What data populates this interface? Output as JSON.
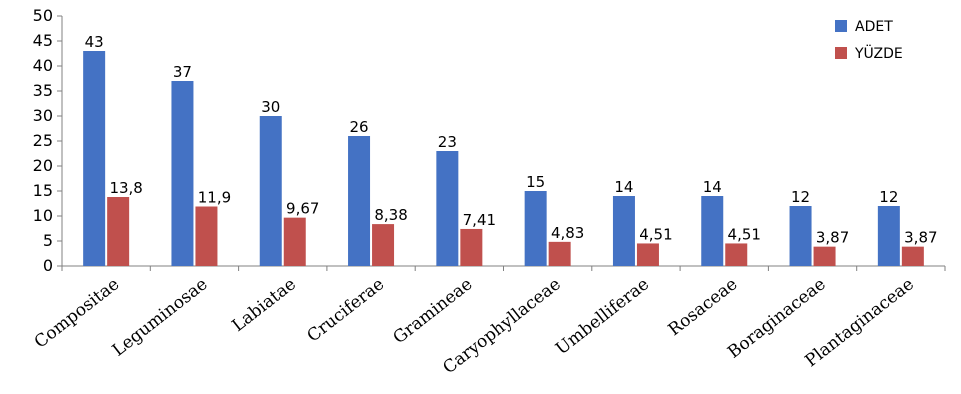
{
  "chart_data": {
    "type": "bar",
    "categories": [
      "Compositae",
      "Leguminosae",
      "Labiatae",
      "Cruciferae",
      "Gramineae",
      "Caryophyllaceae",
      "Umbelliferae",
      "Rosaceae",
      "Boraginaceae",
      "Plantaginaceae"
    ],
    "series": [
      {
        "name": "ADET",
        "color": "#4472C4",
        "values": [
          43,
          37,
          30,
          26,
          23,
          15,
          14,
          14,
          12,
          12
        ],
        "labels": [
          "43",
          "37",
          "30",
          "26",
          "23",
          "15",
          "14",
          "14",
          "12",
          "12"
        ]
      },
      {
        "name": "YÜZDE",
        "color": "#C0504D",
        "values": [
          13.8,
          11.9,
          9.67,
          8.38,
          7.41,
          4.83,
          4.51,
          4.51,
          3.87,
          3.87
        ],
        "labels": [
          "13,8",
          "11,9",
          "9,67",
          "8,38",
          "7,41",
          "4,83",
          "4,51",
          "4,51",
          "3,87",
          "3,87"
        ]
      }
    ],
    "title": "",
    "xlabel": "",
    "ylabel": "",
    "ylim": [
      0,
      50
    ],
    "yticks": [
      "0",
      "5",
      "10",
      "15",
      "20",
      "25",
      "30",
      "35",
      "40",
      "45",
      "50"
    ],
    "grid": false,
    "legend_position": "top-right"
  }
}
